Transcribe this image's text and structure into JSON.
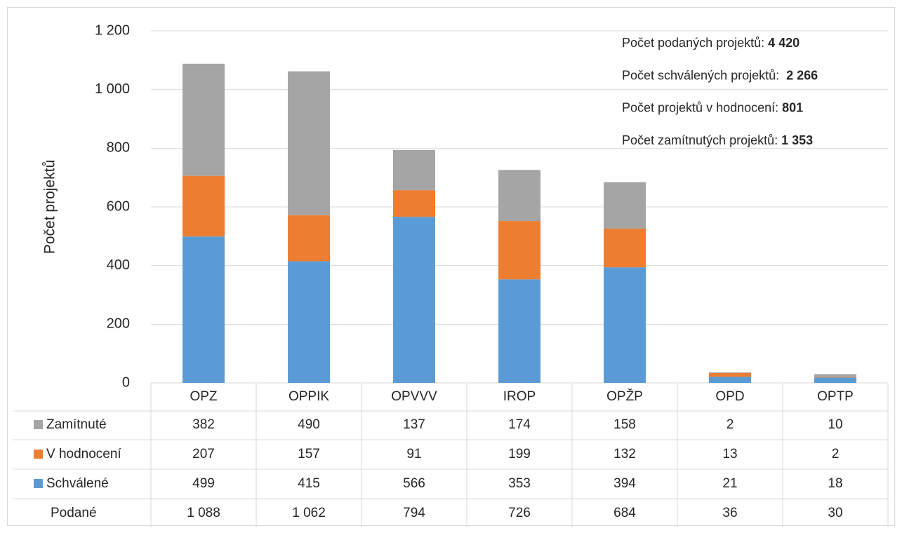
{
  "chart_data": {
    "type": "stacked_bar",
    "y_axis_label": "Počet projektů",
    "categories": [
      "OPZ",
      "OPPIK",
      "OPVVV",
      "IROP",
      "OPŽP",
      "OPD",
      "OPTP"
    ],
    "series": [
      {
        "name": "Schválené",
        "color": "#5b9bd5",
        "values": [
          499,
          415,
          566,
          353,
          394,
          21,
          18
        ]
      },
      {
        "name": "V hodnocení",
        "color": "#ed7d31",
        "values": [
          207,
          157,
          91,
          199,
          132,
          13,
          2
        ]
      },
      {
        "name": "Zamítnuté",
        "color": "#a5a5a5",
        "values": [
          382,
          490,
          137,
          174,
          158,
          2,
          10
        ]
      }
    ],
    "totals": {
      "name": "Podané",
      "values": [
        1088,
        1062,
        794,
        726,
        684,
        36,
        30
      ],
      "value_labels": [
        "1 088",
        "1 062",
        "794",
        "726",
        "684",
        "36",
        "30"
      ]
    },
    "ylim": [
      0,
      1200
    ],
    "yticks": [
      0,
      200,
      400,
      600,
      800,
      {
        "value": 1000,
        "label": "1 000"
      },
      {
        "value": 1200,
        "label": "1 200"
      }
    ],
    "grid": true,
    "annotations": [
      {
        "label": "Počet podaných projektů:",
        "value": "4 420"
      },
      {
        "label": "Počet schválených projektů: ",
        "value": "2 266"
      },
      {
        "label": "Počet projektů v hodnocení:",
        "value": "801"
      },
      {
        "label": "Počet zamítnutých projektů:",
        "value": "1 353"
      }
    ]
  }
}
